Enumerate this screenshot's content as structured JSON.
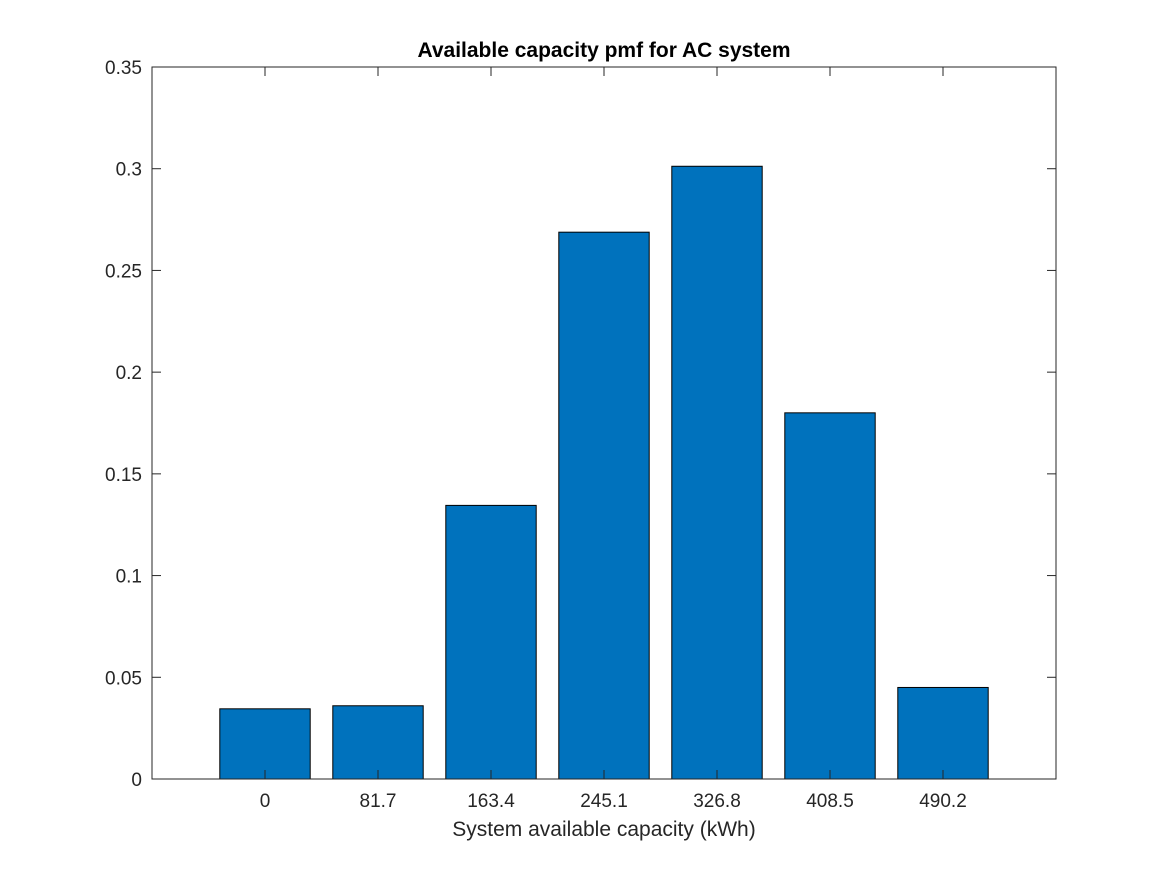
{
  "chart_data": {
    "type": "bar",
    "title": "Available capacity pmf for AC system",
    "xlabel": "System available capacity (kWh)",
    "ylabel": "",
    "categories": [
      "0",
      "81.7",
      "163.4",
      "245.1",
      "326.8",
      "408.5",
      "490.2"
    ],
    "values": [
      0.0345,
      0.036,
      0.1345,
      0.2688,
      0.3012,
      0.18,
      0.045
    ],
    "ylim": [
      0,
      0.35
    ],
    "yticks": [
      "0",
      "0.05",
      "0.1",
      "0.15",
      "0.2",
      "0.25",
      "0.3",
      "0.35"
    ],
    "ytick_values": [
      0,
      0.05,
      0.1,
      0.15,
      0.2,
      0.25,
      0.3,
      0.35
    ],
    "grid": false,
    "bar_color": "#0072BD",
    "edge_color": "#000000"
  }
}
